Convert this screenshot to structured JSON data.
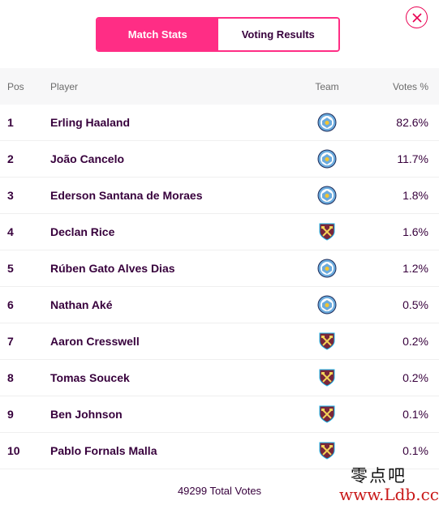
{
  "close_label": "close",
  "tabs": [
    {
      "label": "Match Stats",
      "active": true
    },
    {
      "label": "Voting Results",
      "active": false
    }
  ],
  "table": {
    "headers": {
      "pos": "Pos",
      "player": "Player",
      "team": "Team",
      "votes": "Votes %"
    },
    "rows": [
      {
        "pos": "1",
        "player": "Erling Haaland",
        "team_icon": "man-city-badge",
        "votes": "82.6%"
      },
      {
        "pos": "2",
        "player": "João Cancelo",
        "team_icon": "man-city-badge",
        "votes": "11.7%"
      },
      {
        "pos": "3",
        "player": "Ederson Santana de Moraes",
        "team_icon": "man-city-badge",
        "votes": "1.8%"
      },
      {
        "pos": "4",
        "player": "Declan Rice",
        "team_icon": "west-ham-badge",
        "votes": "1.6%"
      },
      {
        "pos": "5",
        "player": "Rúben Gato Alves Dias",
        "team_icon": "man-city-badge",
        "votes": "1.2%"
      },
      {
        "pos": "6",
        "player": "Nathan Aké",
        "team_icon": "man-city-badge",
        "votes": "0.5%"
      },
      {
        "pos": "7",
        "player": "Aaron Cresswell",
        "team_icon": "west-ham-badge",
        "votes": "0.2%"
      },
      {
        "pos": "8",
        "player": "Tomas Soucek",
        "team_icon": "west-ham-badge",
        "votes": "0.2%"
      },
      {
        "pos": "9",
        "player": "Ben Johnson",
        "team_icon": "west-ham-badge",
        "votes": "0.1%"
      },
      {
        "pos": "10",
        "player": "Pablo Fornals Malla",
        "team_icon": "west-ham-badge",
        "votes": "0.1%"
      }
    ]
  },
  "footer": {
    "total_votes": "49299 Total Votes"
  },
  "watermark": {
    "cn": "零点吧",
    "url": "www.Ldb.cc"
  },
  "colors": {
    "accent": "#ff2d85",
    "close": "#e90052",
    "text": "#37003c"
  }
}
